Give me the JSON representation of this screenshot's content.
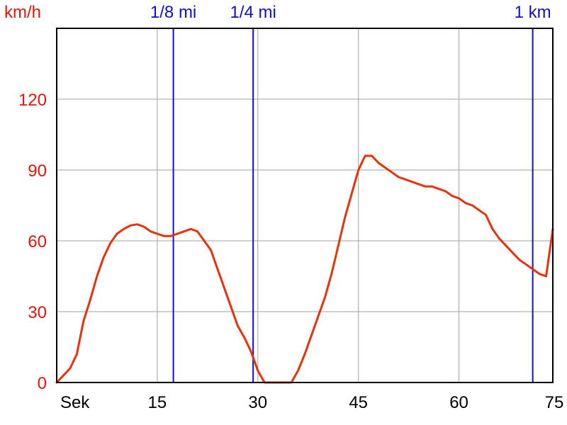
{
  "chart_data": {
    "type": "line",
    "ylabel": "km/h",
    "xlabel": "Sek",
    "xlim": [
      0,
      74
    ],
    "ylim": [
      0,
      150
    ],
    "grid": true,
    "x_ticks": [
      {
        "value": 15,
        "label": "15"
      },
      {
        "value": 30,
        "label": "30"
      },
      {
        "value": 45,
        "label": "45"
      },
      {
        "value": 60,
        "label": "60"
      },
      {
        "value": 75,
        "label": "75"
      }
    ],
    "y_ticks": [
      {
        "value": 0,
        "label": "0"
      },
      {
        "value": 30,
        "label": "30"
      },
      {
        "value": 60,
        "label": "60"
      },
      {
        "value": 90,
        "label": "90"
      },
      {
        "value": 120,
        "label": "120"
      }
    ],
    "markers": [
      {
        "x": 17.4,
        "label": "1/8 mi"
      },
      {
        "x": 29.3,
        "label": "1/4 mi"
      },
      {
        "x": 71.0,
        "label": "1 km"
      }
    ],
    "series": [
      {
        "color": "#e8320c",
        "x": [
          0,
          1,
          2,
          3,
          4,
          5,
          6,
          7,
          8,
          9,
          10,
          11,
          12,
          13,
          14,
          15,
          16,
          17,
          18,
          19,
          20,
          21,
          22,
          23,
          24,
          25,
          26,
          27,
          28,
          29,
          30,
          31,
          32,
          33,
          34,
          35,
          36,
          37,
          38,
          39,
          40,
          41,
          42,
          43,
          44,
          45,
          46,
          47,
          48,
          49,
          50,
          51,
          52,
          53,
          54,
          55,
          56,
          57,
          58,
          59,
          60,
          61,
          62,
          63,
          64,
          65,
          66,
          67,
          68,
          69,
          70,
          71,
          72,
          73,
          74
        ],
        "y": [
          0,
          3,
          6,
          12,
          26,
          35,
          45,
          53,
          59,
          63,
          65,
          66.5,
          67,
          66,
          64,
          63,
          62,
          62,
          63,
          64,
          65,
          64,
          60,
          56,
          48,
          40,
          32,
          24,
          19,
          13,
          5,
          0,
          0,
          0,
          0,
          0,
          5,
          12,
          20,
          28,
          36,
          46,
          58,
          70,
          80,
          90,
          96,
          96,
          93,
          91,
          89,
          87,
          86,
          85,
          84,
          83,
          83,
          82,
          81,
          79,
          78,
          76,
          75,
          73,
          71,
          65,
          61,
          58,
          55,
          52,
          50,
          48,
          46,
          45,
          65
        ]
      }
    ]
  }
}
